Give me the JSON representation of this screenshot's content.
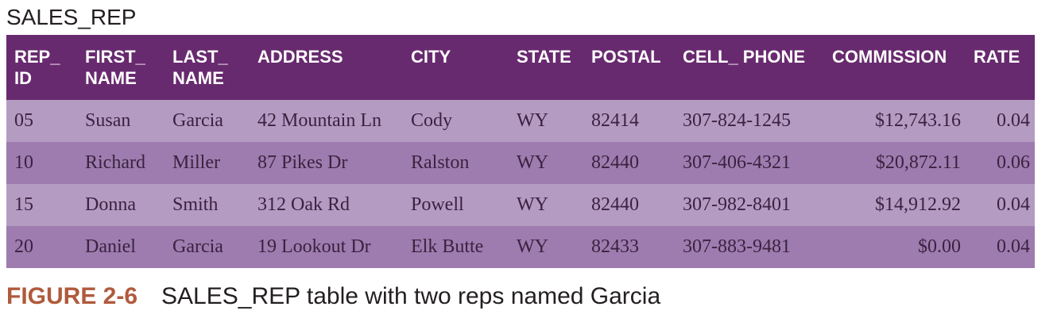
{
  "table_title": "SALES_REP",
  "columns": [
    "REP_\nID",
    "FIRST_\nNAME",
    "LAST_\nNAME",
    "ADDRESS",
    "CITY",
    "STATE",
    "POSTAL",
    "CELL_ PHONE",
    "COMMISSION",
    "RATE"
  ],
  "rows": [
    [
      "05",
      "Susan",
      "Garcia",
      "42 Mountain Ln",
      "Cody",
      "WY",
      "82414",
      "307-824-1245",
      "$12,743.16",
      "0.04"
    ],
    [
      "10",
      "Richard",
      "Miller",
      "87 Pikes Dr",
      "Ralston",
      "WY",
      "82440",
      "307-406-4321",
      "$20,872.11",
      "0.06"
    ],
    [
      "15",
      "Donna",
      "Smith",
      "312 Oak Rd",
      "Powell",
      "WY",
      "82440",
      "307-982-8401",
      "$14,912.92",
      "0.04"
    ],
    [
      "20",
      "Daniel",
      "Garcia",
      "19 Lookout Dr",
      "Elk Butte",
      "WY",
      "82433",
      "307-883-9481",
      "$0.00",
      "0.04"
    ]
  ],
  "caption": {
    "label": "FIGURE 2-6",
    "text": "SALES_REP table with two reps named Garcia"
  },
  "colors": {
    "header_bg": "#682a6f",
    "row_light": "#b49bc2",
    "row_dark": "#9e7caf",
    "caption_label": "#b05a3c"
  }
}
